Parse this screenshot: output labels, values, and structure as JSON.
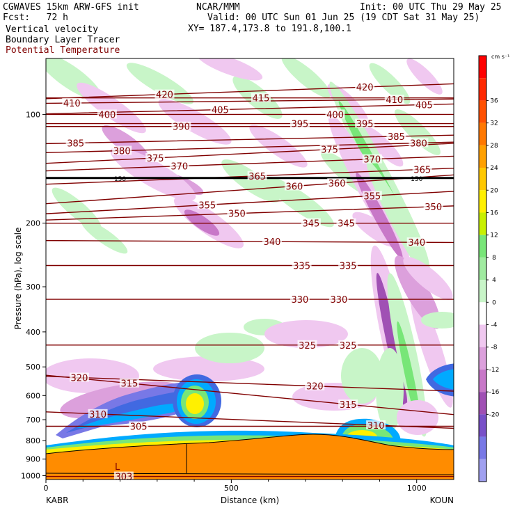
{
  "header": {
    "model": "CGWAVES 15km ARW-GFS init",
    "forecast": "Fcst:   72 h",
    "org": "NCAR/MMM",
    "init": "Init: 00 UTC Thu 29 May 25",
    "valid": "Valid: 00 UTC Sun 01 Jun 25 (19 CDT Sat 31 May 25)",
    "xy": "XY= 187.4,173.8 to 191.8,100.1",
    "field1": "Vertical velocity",
    "field2": "Boundary Layer Tracer",
    "field3": "Potential Temperature"
  },
  "colors": {
    "potential_temperature": "#800000",
    "terrain": "#ff8c00"
  },
  "chart_data": {
    "type": "heatmap",
    "xlabel": "Distance (km)",
    "ylabel": "Pressure (hPa), log scale",
    "x_range": [
      0,
      1100
    ],
    "x_ticks": [
      "0",
      "500",
      "1000"
    ],
    "x_endpoints": [
      "KABR",
      "KOUN"
    ],
    "y_range_hPa": [
      1025,
      70
    ],
    "y_ticks": [
      "100",
      "200",
      "300",
      "400",
      "500",
      "600",
      "700",
      "800",
      "900",
      "1000"
    ],
    "colorbar": {
      "unit": "cm s⁻¹",
      "ticks": [
        "36",
        "32",
        "28",
        "24",
        "20",
        "16",
        "12",
        "8",
        "4",
        "0",
        "-4",
        "-8",
        "-12",
        "-16",
        "-20"
      ],
      "colors": [
        "#ff0000",
        "#ff2800",
        "#ff5000",
        "#ff7800",
        "#ffa000",
        "#ffc800",
        "#fff000",
        "#c8f000",
        "#78e678",
        "#a0eba0",
        "#c8f5c8",
        "#ffffff",
        "#f0c8f0",
        "#dca0dc",
        "#c878c8",
        "#a050b4",
        "#7850c8",
        "#7878e6",
        "#a0a0f0"
      ]
    },
    "tropopause_line_hPa": 150,
    "tropopause_labels": [
      "150",
      "150"
    ],
    "isentropes": [
      {
        "theta": 420,
        "labels": [
          {
            "x": 320,
            "p": 88
          },
          {
            "x": 860,
            "p": 84
          }
        ]
      },
      {
        "theta": 415,
        "labels": [
          {
            "x": 580,
            "p": 90
          }
        ]
      },
      {
        "theta": 410,
        "labels": [
          {
            "x": 70,
            "p": 93
          },
          {
            "x": 940,
            "p": 91
          }
        ]
      },
      {
        "theta": 405,
        "labels": [
          {
            "x": 470,
            "p": 97
          },
          {
            "x": 1020,
            "p": 94
          }
        ]
      },
      {
        "theta": 400,
        "labels": [
          {
            "x": 165,
            "p": 100
          },
          {
            "x": 780,
            "p": 100
          }
        ]
      },
      {
        "theta": 395,
        "labels": [
          {
            "x": 685,
            "p": 106
          },
          {
            "x": 860,
            "p": 106
          }
        ]
      },
      {
        "theta": 390,
        "labels": [
          {
            "x": 365,
            "p": 108
          }
        ]
      },
      {
        "theta": 385,
        "labels": [
          {
            "x": 80,
            "p": 120
          },
          {
            "x": 945,
            "p": 115
          }
        ]
      },
      {
        "theta": 380,
        "labels": [
          {
            "x": 205,
            "p": 126
          },
          {
            "x": 1005,
            "p": 120
          }
        ]
      },
      {
        "theta": 375,
        "labels": [
          {
            "x": 295,
            "p": 132
          },
          {
            "x": 765,
            "p": 125
          }
        ]
      },
      {
        "theta": 370,
        "labels": [
          {
            "x": 360,
            "p": 139
          },
          {
            "x": 880,
            "p": 133
          }
        ]
      },
      {
        "theta": 365,
        "labels": [
          {
            "x": 570,
            "p": 148
          },
          {
            "x": 1015,
            "p": 142
          }
        ]
      },
      {
        "theta": 360,
        "labels": [
          {
            "x": 670,
            "p": 158
          },
          {
            "x": 785,
            "p": 155
          }
        ]
      },
      {
        "theta": 355,
        "labels": [
          {
            "x": 435,
            "p": 178
          },
          {
            "x": 880,
            "p": 168
          }
        ]
      },
      {
        "theta": 350,
        "labels": [
          {
            "x": 515,
            "p": 188
          },
          {
            "x": 1045,
            "p": 180
          }
        ]
      },
      {
        "theta": 345,
        "labels": [
          {
            "x": 715,
            "p": 200
          },
          {
            "x": 810,
            "p": 200
          }
        ]
      },
      {
        "theta": 340,
        "labels": [
          {
            "x": 610,
            "p": 225
          },
          {
            "x": 1000,
            "p": 226
          }
        ]
      },
      {
        "theta": 335,
        "labels": [
          {
            "x": 690,
            "p": 262
          },
          {
            "x": 815,
            "p": 262
          }
        ]
      },
      {
        "theta": 330,
        "labels": [
          {
            "x": 685,
            "p": 325
          },
          {
            "x": 790,
            "p": 325
          }
        ]
      },
      {
        "theta": 325,
        "labels": [
          {
            "x": 705,
            "p": 435
          },
          {
            "x": 815,
            "p": 435
          }
        ]
      },
      {
        "theta": 320,
        "labels": [
          {
            "x": 90,
            "p": 535
          },
          {
            "x": 725,
            "p": 565
          }
        ]
      },
      {
        "theta": 315,
        "labels": [
          {
            "x": 225,
            "p": 555
          },
          {
            "x": 815,
            "p": 635
          }
        ]
      },
      {
        "theta": 310,
        "labels": [
          {
            "x": 140,
            "p": 675
          },
          {
            "x": 890,
            "p": 725
          }
        ]
      },
      {
        "theta": 305,
        "labels": [
          {
            "x": 250,
            "p": 730
          }
        ]
      },
      {
        "theta": 303,
        "labels": [
          {
            "x": 210,
            "p": 1005
          }
        ]
      }
    ],
    "annotations": [
      "L"
    ]
  }
}
